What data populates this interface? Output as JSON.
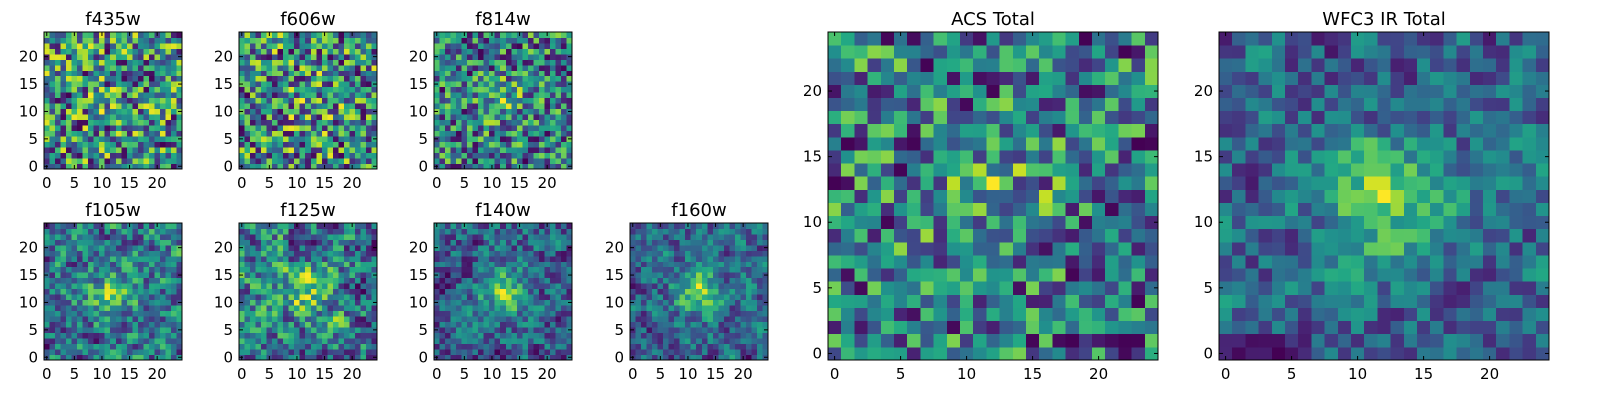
{
  "chart_data": [
    {
      "type": "heatmap",
      "title": "f435w",
      "xticks": [
        0,
        5,
        10,
        15,
        20
      ],
      "yticks": [
        0,
        5,
        10,
        15,
        20
      ],
      "grid_size": 25,
      "colormap": "viridis",
      "center_peak": 0.05,
      "seed": 11
    },
    {
      "type": "heatmap",
      "title": "f606w",
      "xticks": [
        0,
        5,
        10,
        15,
        20
      ],
      "yticks": [
        0,
        5,
        10,
        15,
        20
      ],
      "grid_size": 25,
      "colormap": "viridis",
      "center_peak": 0.08,
      "seed": 23
    },
    {
      "type": "heatmap",
      "title": "f814w",
      "xticks": [
        0,
        5,
        10,
        15,
        20
      ],
      "yticks": [
        0,
        5,
        10,
        15,
        20
      ],
      "grid_size": 25,
      "colormap": "viridis",
      "center_peak": 0.18,
      "seed": 37
    },
    {
      "type": "heatmap",
      "title": "f105w",
      "xticks": [
        0,
        5,
        10,
        15,
        20
      ],
      "yticks": [
        0,
        5,
        10,
        15,
        20
      ],
      "grid_size": 25,
      "colormap": "viridis",
      "center_peak": 0.28,
      "seed": 41
    },
    {
      "type": "heatmap",
      "title": "f125w",
      "xticks": [
        0,
        5,
        10,
        15,
        20
      ],
      "yticks": [
        0,
        5,
        10,
        15,
        20
      ],
      "grid_size": 25,
      "colormap": "viridis",
      "center_peak": 0.22,
      "seed": 53
    },
    {
      "type": "heatmap",
      "title": "f140w",
      "xticks": [
        0,
        5,
        10,
        15,
        20
      ],
      "yticks": [
        0,
        5,
        10,
        15,
        20
      ],
      "grid_size": 25,
      "colormap": "viridis",
      "center_peak": 0.4,
      "seed": 67
    },
    {
      "type": "heatmap",
      "title": "f160w",
      "xticks": [
        0,
        5,
        10,
        15,
        20
      ],
      "yticks": [
        0,
        5,
        10,
        15,
        20
      ],
      "grid_size": 25,
      "colormap": "viridis",
      "center_peak": 0.45,
      "seed": 79
    },
    {
      "type": "heatmap",
      "title": "ACS Total",
      "xticks": [
        0,
        5,
        10,
        15,
        20
      ],
      "yticks": [
        0,
        5,
        10,
        15,
        20
      ],
      "grid_size": 25,
      "colormap": "viridis",
      "center_peak": 0.2,
      "seed": 83
    },
    {
      "type": "heatmap",
      "title": "WFC3 IR Total",
      "xticks": [
        0,
        5,
        10,
        15,
        20
      ],
      "yticks": [
        0,
        5,
        10,
        15,
        20
      ],
      "grid_size": 25,
      "colormap": "viridis",
      "center_peak": 0.5,
      "seed": 97
    }
  ]
}
